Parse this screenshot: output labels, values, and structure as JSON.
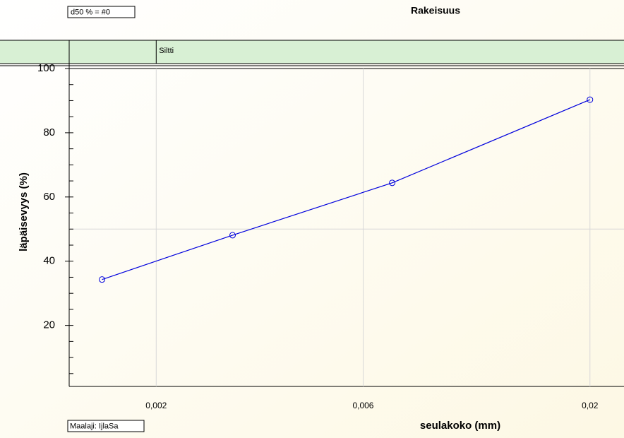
{
  "chart_data": {
    "type": "line",
    "title": "Rakeisuus",
    "note_top": "d50 % = #0",
    "note_bottom": "Maalaji: IjlaSa",
    "x_label": "seulakoko (mm)",
    "y_label": "läpäisevyys (%)",
    "zone": {
      "label": "Siltti",
      "from": 0.002
    },
    "log_x": true,
    "xlim": [
      0.00126,
      0.0224
    ],
    "xticks": [
      {
        "value": 0.002,
        "label": "0,002"
      },
      {
        "value": 0.006,
        "label": "0,006"
      },
      {
        "value": 0.02,
        "label": "0,02"
      }
    ],
    "ylim": [
      1,
      100
    ],
    "yticks": [
      20,
      40,
      60,
      80,
      100
    ],
    "yminorticks": [
      5,
      10,
      15,
      25,
      30,
      35,
      45,
      50,
      55,
      65,
      70,
      75,
      85,
      90,
      95
    ],
    "ygrid": [
      50
    ],
    "series": [
      {
        "name": "Rakeisuus",
        "color": "#0000dd",
        "x": [
          0.0015,
          0.003,
          0.007,
          0.02
        ],
        "values": [
          34.3,
          48.1,
          64.4,
          90.3
        ]
      }
    ]
  }
}
